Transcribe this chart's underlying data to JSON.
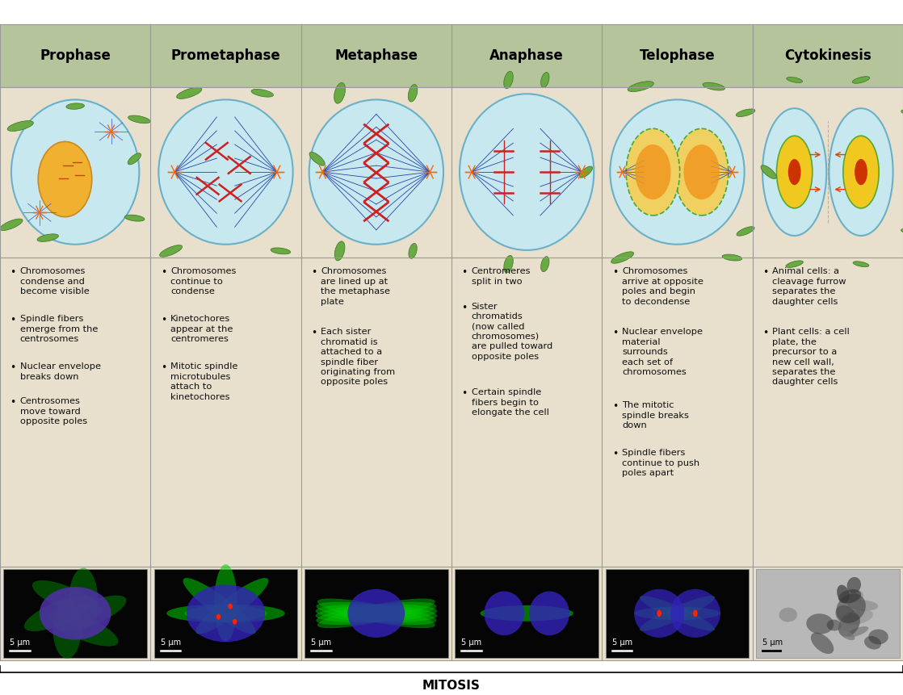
{
  "stages": [
    "Prophase",
    "Prometaphase",
    "Metaphase",
    "Anaphase",
    "Telophase",
    "Cytokinesis"
  ],
  "header_bg_colors": [
    "#b5c49a",
    "#b5c49a",
    "#b5c49a",
    "#b5c49a",
    "#b5c49a",
    "#b5c49a"
  ],
  "body_bg_color": "#e8e0cc",
  "header_text_color": "#000000",
  "border_color": "#999999",
  "cell_fill": "#c8e8f0",
  "cell_edge": "#6ab0c8",
  "bullet_points": [
    [
      "Chromosomes\ncondense and\nbecome visible",
      "Spindle fibers\nemerge from the\ncentrosomes",
      "Nuclear envelope\nbreaks down",
      "Centrosomes\nmove toward\nopposite poles"
    ],
    [
      "Chromosomes\ncontinue to\ncondense",
      "Kinetochores\nappear at the\ncentromeres",
      "Mitotic spindle\nmicrotubules\nattach to\nkinetochores"
    ],
    [
      "Chromosomes\nare lined up at\nthe metaphase\nplate",
      "Each sister\nchromatid is\nattached to a\nspindle fiber\noriginating from\nopposite poles"
    ],
    [
      "Centromeres\nsplit in two",
      "Sister\nchromatids\n(now called\nchromosomes)\nare pulled toward\nopposite poles",
      "Certain spindle\nfibers begin to\nelongate the cell"
    ],
    [
      "Chromosomes\narrive at opposite\npoles and begin\nto decondense",
      "Nuclear envelope\nmaterial\nsurrounds\neach set of\nchromosomes",
      "The mitotic\nspindle breaks\ndown",
      "Spindle fibers\ncontinue to push\npoles apart"
    ],
    [
      "Animal cells: a\ncleavage furrow\nseparates the\ndaughter cells",
      "Plant cells: a cell\nplate, the\nprecursor to a\nnew cell wall,\nseparates the\ndaughter cells"
    ]
  ],
  "scale_bar_text": "5 μm",
  "mitosis_label": "MITOSIS",
  "fig_width": 11.18,
  "fig_height": 8.61,
  "title_fontsize": 12,
  "body_fontsize": 8.2,
  "scale_fontsize": 7.0
}
